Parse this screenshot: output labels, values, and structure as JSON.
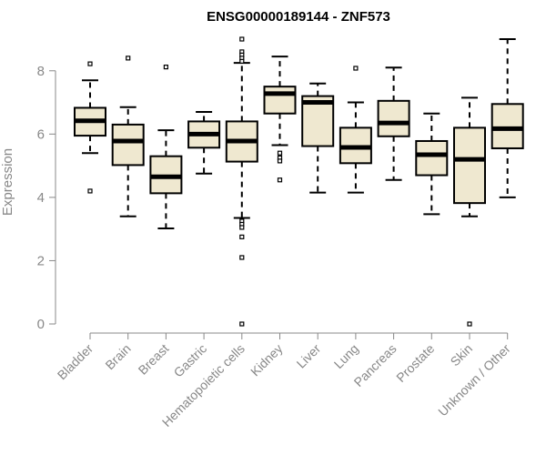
{
  "chart_data": {
    "type": "box",
    "title": "ENSG00000189144 - ZNF573",
    "xlabel": "",
    "ylabel": "Expression",
    "ylim": [
      0,
      9
    ],
    "yticks": [
      0,
      2,
      4,
      6,
      8
    ],
    "grid": false,
    "colors": {
      "box_fill": "#efe8d0",
      "stroke": "#000000",
      "median": "#000000",
      "axis_text": "#888888"
    },
    "categories": [
      "Bladder",
      "Brain",
      "Breast",
      "Gastric",
      "Hematopoietic cells",
      "Kidney",
      "Liver",
      "Lung",
      "Pancreas",
      "Prostate",
      "Skin",
      "Unknown / Other"
    ],
    "boxes": [
      {
        "q1": 5.95,
        "median": 6.42,
        "q3": 6.83,
        "whisker_low": 5.4,
        "whisker_high": 7.7,
        "outliers": [
          8.22,
          4.2
        ]
      },
      {
        "q1": 5.02,
        "median": 5.78,
        "q3": 6.3,
        "whisker_low": 3.4,
        "whisker_high": 6.85,
        "outliers": [
          8.4
        ]
      },
      {
        "q1": 4.13,
        "median": 4.65,
        "q3": 5.3,
        "whisker_low": 3.02,
        "whisker_high": 6.12,
        "outliers": [
          8.12
        ]
      },
      {
        "q1": 5.57,
        "median": 6.0,
        "q3": 6.4,
        "whisker_low": 4.75,
        "whisker_high": 6.7,
        "outliers": []
      },
      {
        "q1": 5.13,
        "median": 5.78,
        "q3": 6.4,
        "whisker_low": 3.35,
        "whisker_high": 8.25,
        "outliers": [
          9.0,
          8.6,
          8.5,
          8.4,
          8.3,
          3.25,
          3.15,
          3.05,
          2.75,
          2.1,
          0.0
        ]
      },
      {
        "q1": 6.65,
        "median": 7.28,
        "q3": 7.5,
        "whisker_low": 5.65,
        "whisker_high": 8.45,
        "outliers": [
          5.4,
          5.25,
          5.15,
          4.55
        ]
      },
      {
        "q1": 5.62,
        "median": 7.0,
        "q3": 7.2,
        "whisker_low": 4.15,
        "whisker_high": 7.6,
        "outliers": []
      },
      {
        "q1": 5.08,
        "median": 5.58,
        "q3": 6.2,
        "whisker_low": 4.15,
        "whisker_high": 7.0,
        "outliers": [
          8.08
        ]
      },
      {
        "q1": 5.93,
        "median": 6.35,
        "q3": 7.05,
        "whisker_low": 4.55,
        "whisker_high": 8.1,
        "outliers": []
      },
      {
        "q1": 4.7,
        "median": 5.35,
        "q3": 5.78,
        "whisker_low": 3.47,
        "whisker_high": 6.65,
        "outliers": []
      },
      {
        "q1": 3.82,
        "median": 5.2,
        "q3": 6.2,
        "whisker_low": 3.4,
        "whisker_high": 7.15,
        "outliers": [
          0.0
        ]
      },
      {
        "q1": 5.55,
        "median": 6.17,
        "q3": 6.95,
        "whisker_low": 4.0,
        "whisker_high": 9.0,
        "outliers": []
      }
    ]
  }
}
